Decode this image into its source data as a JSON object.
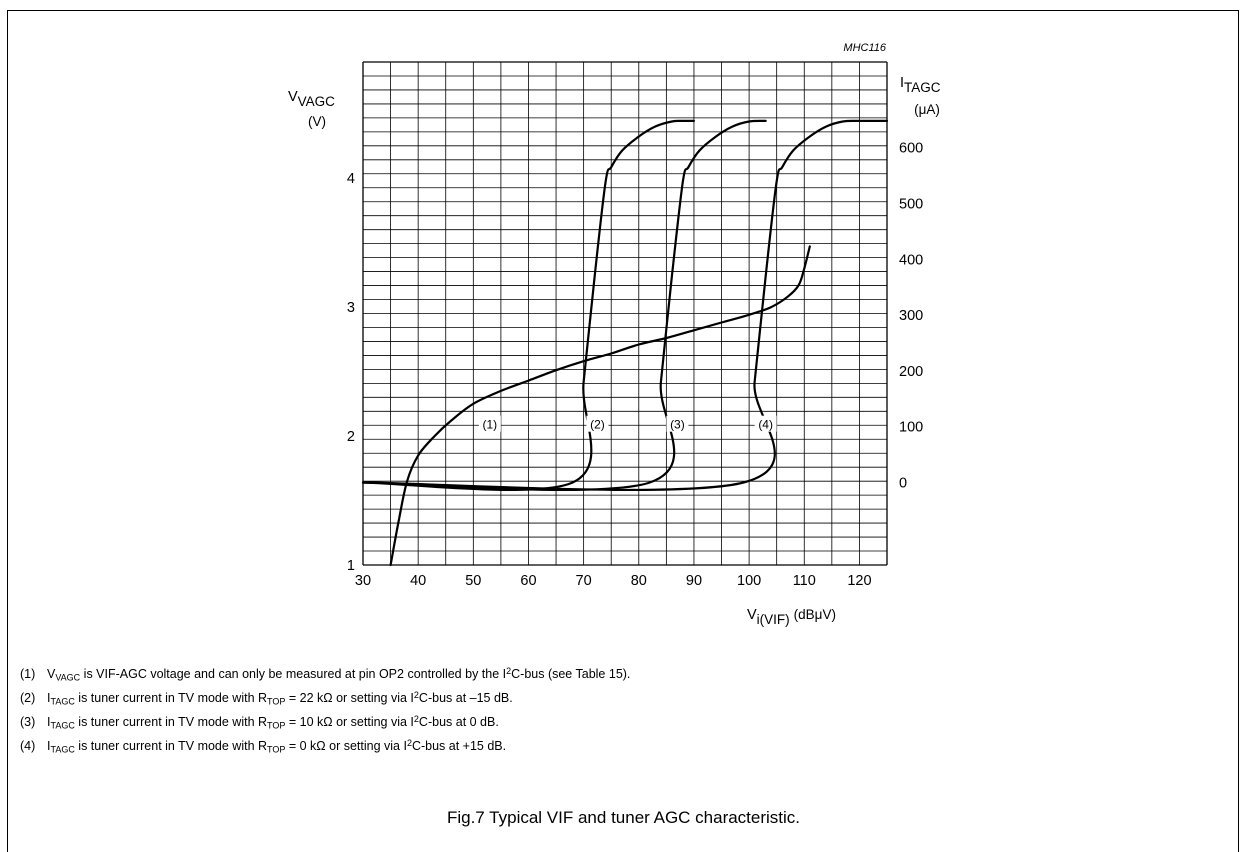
{
  "chart_data": {
    "type": "line",
    "code": "MHC116",
    "x": {
      "ticks": [
        30,
        40,
        50,
        60,
        70,
        80,
        90,
        100,
        110,
        120
      ],
      "range": [
        30,
        125
      ]
    },
    "y_left": {
      "ticks": [
        1,
        2,
        3,
        4
      ],
      "range": [
        1,
        4.9
      ]
    },
    "y_right": {
      "ticks": [
        0,
        100,
        200,
        300,
        400,
        500,
        600
      ]
    },
    "grid": true,
    "series": [
      {
        "label": "(1)",
        "axis": "left",
        "x": [
          35,
          36.5,
          38,
          40,
          43,
          46,
          50,
          55,
          60,
          65,
          70,
          75,
          80,
          85,
          90,
          95,
          100,
          104,
          107,
          109,
          110,
          111
        ],
        "y": [
          1,
          1.35,
          1.65,
          1.85,
          2.0,
          2.12,
          2.25,
          2.35,
          2.43,
          2.51,
          2.58,
          2.64,
          2.71,
          2.76,
          2.82,
          2.88,
          2.94,
          3.0,
          3.08,
          3.17,
          3.3,
          3.47
        ]
      },
      {
        "label": "(2)",
        "axis": "right",
        "x": [
          30,
          68,
          70,
          72,
          74,
          75,
          77,
          80,
          83,
          86,
          88,
          90
        ],
        "y": [
          0,
          0,
          180,
          370,
          540,
          565,
          595,
          620,
          638,
          647,
          648,
          648
        ]
      },
      {
        "label": "(3)",
        "axis": "right",
        "x": [
          30,
          82,
          84,
          86,
          88,
          89,
          91,
          94,
          97,
          100,
          103
        ],
        "y": [
          0,
          0,
          180,
          370,
          540,
          565,
          595,
          620,
          638,
          647,
          648
        ]
      },
      {
        "label": "(4)",
        "axis": "right",
        "x": [
          30,
          99,
          101,
          103,
          105,
          106,
          108,
          111,
          114,
          117,
          120,
          125
        ],
        "y": [
          0,
          0,
          180,
          370,
          540,
          565,
          595,
          620,
          638,
          647,
          648,
          648
        ]
      }
    ],
    "curve_labels": [
      {
        "text": "(1)",
        "x": 53,
        "y": 2.08
      },
      {
        "text": "(2)",
        "x": 72.5,
        "y": 2.08
      },
      {
        "text": "(3)",
        "x": 87,
        "y": 2.08
      },
      {
        "text": "(4)",
        "x": 103,
        "y": 2.08
      }
    ]
  },
  "axis_labels": {
    "left_main": "V",
    "left_sub": "VAGC",
    "left_unit": "(V)",
    "right_main": "I",
    "right_sub": "TAGC",
    "right_unit": "(μA)",
    "x_main": "V",
    "x_sub": "i(VIF)",
    "x_unit": "(dBμV)"
  },
  "notes": [
    {
      "num": "(1)",
      "a": "V",
      "a_sub": "VAGC",
      "b": " is VIF-AGC voltage and can only be measured at pin OP2 controlled by the I",
      "b_sup": "2",
      "c": "C-bus (see Table 15).",
      "d": "",
      "d_sub": "",
      "e": ""
    },
    {
      "num": "(2)",
      "a": "I",
      "a_sub": "TAGC",
      "b": " is tuner current in TV mode with R",
      "b_sub": "TOP",
      "c": " = 22 kΩ or setting via I",
      "c_sup": "2",
      "d": "C-bus at –15 dB."
    },
    {
      "num": "(3)",
      "a": "I",
      "a_sub": "TAGC",
      "b": " is tuner current in TV mode with R",
      "b_sub": "TOP",
      "c": " = 10 kΩ or setting via I",
      "c_sup": "2",
      "d": "C-bus at 0 dB."
    },
    {
      "num": "(4)",
      "a": "I",
      "a_sub": "TAGC",
      "b": " is tuner current in TV mode with R",
      "b_sub": "TOP",
      "c": " = 0 kΩ or setting via I",
      "c_sup": "2",
      "d": "C-bus at +15 dB."
    }
  ],
  "caption": "Fig.7  Typical VIF and tuner AGC characteristic."
}
